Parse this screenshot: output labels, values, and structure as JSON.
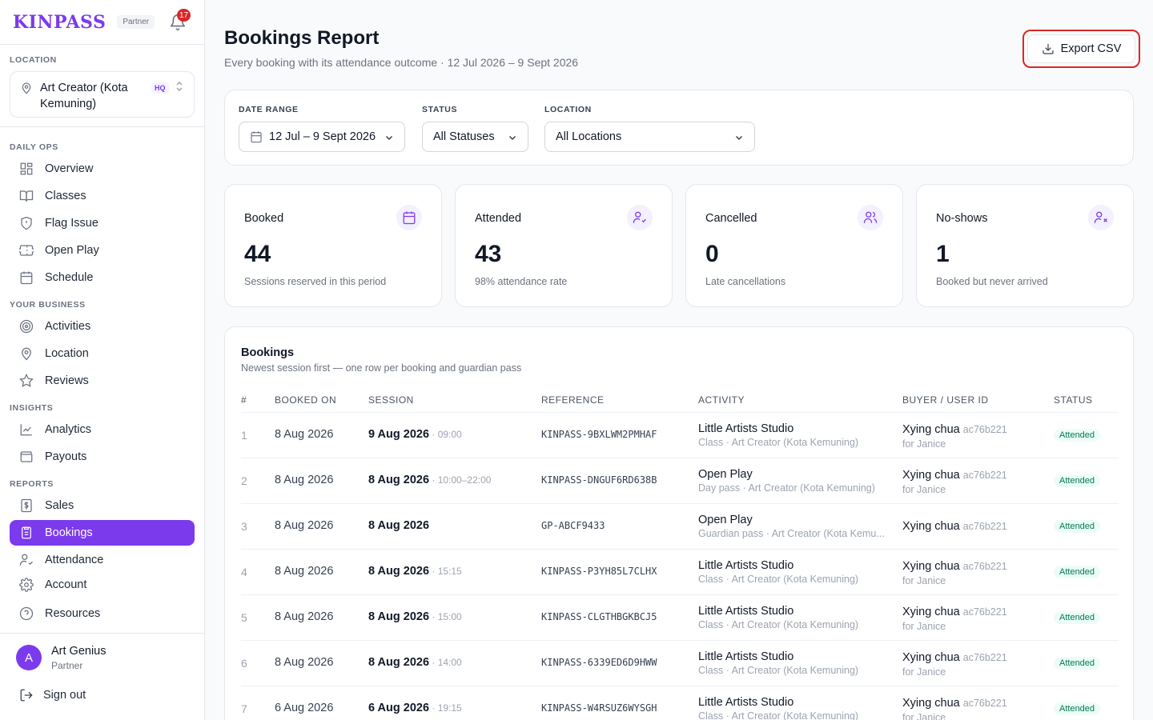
{
  "brand": {
    "logo": "KINPASS",
    "tag": "Partner",
    "notifications": "17"
  },
  "location": {
    "label": "LOCATION",
    "name": "Art Creator (Kota Kemuning)",
    "badge": "HQ"
  },
  "nav": {
    "sections": [
      "DAILY OPS",
      "YOUR BUSINESS",
      "INSIGHTS",
      "REPORTS"
    ],
    "items": [
      "Overview",
      "Classes",
      "Flag Issue",
      "Open Play",
      "Schedule",
      "Activities",
      "Location",
      "Reviews",
      "Analytics",
      "Payouts",
      "Sales",
      "Bookings",
      "Attendance",
      "Account",
      "Resources"
    ]
  },
  "user": {
    "initial": "A",
    "name": "Art Genius",
    "role": "Partner",
    "signout": "Sign out"
  },
  "header": {
    "title": "Bookings Report",
    "subtitle": "Every booking with its attendance outcome · 12 Jul 2026 – 9 Sept 2026",
    "export_label": "Export CSV"
  },
  "filters": {
    "date_label": "DATE RANGE",
    "date_value": "12 Jul – 9 Sept 2026",
    "status_label": "STATUS",
    "status_value": "All Statuses",
    "location_label": "LOCATION",
    "location_value": "All Locations"
  },
  "stats": [
    {
      "label": "Booked",
      "value": "44",
      "note": "Sessions reserved in this period"
    },
    {
      "label": "Attended",
      "value": "43",
      "note": "98% attendance rate"
    },
    {
      "label": "Cancelled",
      "value": "0",
      "note": "Late cancellations"
    },
    {
      "label": "No-shows",
      "value": "1",
      "note": "Booked but never arrived"
    }
  ],
  "table": {
    "title": "Bookings",
    "subtitle": "Newest session first — one row per booking and guardian pass",
    "headers": [
      "#",
      "BOOKED ON",
      "SESSION",
      "REFERENCE",
      "ACTIVITY",
      "BUYER / USER ID",
      "STATUS"
    ],
    "rows": [
      {
        "n": "1",
        "booked": "8 Aug 2026",
        "session": "9 Aug 2026",
        "time": " · 09:00",
        "ref": "KINPASS-9BXLWM2PMHAF",
        "act": "Little Artists Studio",
        "act_sub": "Class · Art Creator (Kota Kemuning)",
        "buyer": "Xying chua",
        "uid": "ac76b221",
        "for": "for Janice",
        "status": "Attended"
      },
      {
        "n": "2",
        "booked": "8 Aug 2026",
        "session": "8 Aug 2026",
        "time": " · 10:00–22:00",
        "ref": "KINPASS-DNGUF6RD638B",
        "act": "Open Play",
        "act_sub": "Day pass · Art Creator (Kota Kemuning)",
        "buyer": "Xying chua",
        "uid": "ac76b221",
        "for": "for Janice",
        "status": "Attended"
      },
      {
        "n": "3",
        "booked": "8 Aug 2026",
        "session": "8 Aug 2026",
        "time": "",
        "ref": "GP-ABCF9433",
        "act": "Open Play",
        "act_sub": "Guardian pass · Art Creator (Kota Kemu...",
        "buyer": "Xying chua",
        "uid": "ac76b221",
        "for": "",
        "status": "Attended"
      },
      {
        "n": "4",
        "booked": "8 Aug 2026",
        "session": "8 Aug 2026",
        "time": " · 15:15",
        "ref": "KINPASS-P3YH85L7CLHX",
        "act": "Little Artists Studio",
        "act_sub": "Class · Art Creator (Kota Kemuning)",
        "buyer": "Xying chua",
        "uid": "ac76b221",
        "for": "for Janice",
        "status": "Attended"
      },
      {
        "n": "5",
        "booked": "8 Aug 2026",
        "session": "8 Aug 2026",
        "time": " · 15:00",
        "ref": "KINPASS-CLGTHBGKBCJ5",
        "act": "Little Artists Studio",
        "act_sub": "Class · Art Creator (Kota Kemuning)",
        "buyer": "Xying chua",
        "uid": "ac76b221",
        "for": "for Janice",
        "status": "Attended"
      },
      {
        "n": "6",
        "booked": "8 Aug 2026",
        "session": "8 Aug 2026",
        "time": " · 14:00",
        "ref": "KINPASS-6339ED6D9HWW",
        "act": "Little Artists Studio",
        "act_sub": "Class · Art Creator (Kota Kemuning)",
        "buyer": "Xying chua",
        "uid": "ac76b221",
        "for": "for Janice",
        "status": "Attended"
      },
      {
        "n": "7",
        "booked": "6 Aug 2026",
        "session": "6 Aug 2026",
        "time": " · 19:15",
        "ref": "KINPASS-W4RSUZ6WYSGH",
        "act": "Little Artists Studio",
        "act_sub": "Class · Art Creator (Kota Kemuning)",
        "buyer": "Xying chua",
        "uid": "ac76b221",
        "for": "for Janice",
        "status": "Attended"
      }
    ]
  },
  "colors": {
    "accent": "#7c3aed",
    "danger": "#dc2626",
    "success": "#047857"
  }
}
